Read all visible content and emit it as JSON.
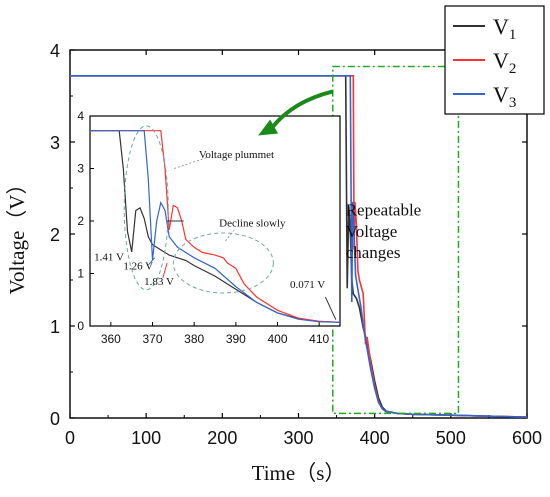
{
  "chart_data": [
    {
      "type": "line",
      "xlabel": "Time（s）",
      "ylabel": "Voltage（V）",
      "xlim": [
        0,
        600
      ],
      "ylim": [
        0,
        4
      ],
      "xticks": [
        "0",
        "100",
        "200",
        "300",
        "400",
        "500",
        "600"
      ],
      "yticks": [
        "0",
        "1",
        "2",
        "3",
        "4"
      ],
      "grid": false,
      "legend_position": "top-right",
      "series": [
        {
          "name": "V",
          "subscript": "1",
          "color": "#333333",
          "x": [
            0,
            355,
            362,
            364,
            366,
            368,
            370,
            372,
            376,
            380,
            385,
            390,
            395,
            400,
            405,
            410,
            415,
            430,
            450,
            500,
            550,
            600
          ],
          "y": [
            3.72,
            3.72,
            3.72,
            1.41,
            2.3,
            2.05,
            1.5,
            1.35,
            1.3,
            1.2,
            0.98,
            0.82,
            0.62,
            0.4,
            0.22,
            0.12,
            0.075,
            0.05,
            0.04,
            0.03,
            0.02,
            0.01
          ]
        },
        {
          "name": "V",
          "subscript": "2",
          "color": "#ff3333",
          "x": [
            0,
            365,
            372,
            373,
            374,
            376,
            378,
            380,
            385,
            388,
            390,
            395,
            400,
            405,
            410,
            415,
            430,
            450,
            500,
            550,
            600
          ],
          "y": [
            3.72,
            3.72,
            3.72,
            1.83,
            2.35,
            2.1,
            1.6,
            1.5,
            1.35,
            0.8,
            0.88,
            0.58,
            0.35,
            0.18,
            0.1,
            0.07,
            0.05,
            0.04,
            0.03,
            0.02,
            0.01
          ]
        },
        {
          "name": "V",
          "subscript": "3",
          "color": "#3366cc",
          "x": [
            0,
            360,
            368,
            370,
            371,
            373,
            375,
            378,
            382,
            386,
            390,
            395,
            400,
            405,
            410,
            415,
            430,
            450,
            500,
            550,
            600
          ],
          "y": [
            3.72,
            3.72,
            3.72,
            1.26,
            2.35,
            2.0,
            1.55,
            1.4,
            1.2,
            0.95,
            0.75,
            0.52,
            0.32,
            0.17,
            0.1,
            0.07,
            0.05,
            0.04,
            0.03,
            0.02,
            0.01
          ]
        }
      ],
      "annotations": [
        {
          "text": "Repeatable",
          "x": 362,
          "y": 2.2
        },
        {
          "text": "Voltage",
          "x": 362,
          "y": 1.97
        },
        {
          "text": "changes",
          "x": 362,
          "y": 1.74
        }
      ],
      "highlight_box": {
        "x": [
          345,
          510
        ],
        "y": [
          0.05,
          3.82
        ],
        "color": "#22aa22",
        "style": "dash-dot"
      },
      "arrow": {
        "from": [
          345,
          3.55
        ],
        "to": [
          247,
          3.07
        ],
        "color": "#1a8a1a"
      }
    },
    {
      "type": "line",
      "role": "inset",
      "xlim": [
        355,
        415
      ],
      "ylim": [
        0,
        4
      ],
      "xticks": [
        "360",
        "370",
        "380",
        "390",
        "400",
        "410"
      ],
      "yticks": [
        "0",
        "1",
        "2",
        "3",
        "4"
      ],
      "series": [
        {
          "color": "#333333",
          "x": [
            355,
            362,
            363,
            364,
            365,
            366,
            367,
            368,
            369,
            370,
            372,
            374,
            376,
            378,
            380,
            385,
            390,
            395,
            400,
            405,
            410,
            415
          ],
          "y": [
            3.72,
            3.72,
            3.0,
            1.8,
            1.41,
            2.2,
            2.25,
            2.05,
            1.7,
            1.55,
            1.45,
            1.35,
            1.3,
            1.25,
            1.15,
            0.95,
            0.7,
            0.45,
            0.25,
            0.14,
            0.09,
            0.071
          ]
        },
        {
          "color": "#ff3333",
          "x": [
            355,
            372,
            373,
            374,
            375,
            376,
            377,
            378,
            380,
            382,
            385,
            387,
            388,
            390,
            392,
            395,
            400,
            405,
            410,
            415
          ],
          "y": [
            3.72,
            3.72,
            3.0,
            1.83,
            2.3,
            2.25,
            2.0,
            1.65,
            1.5,
            1.4,
            1.35,
            1.3,
            1.2,
            1.1,
            0.8,
            0.55,
            0.3,
            0.15,
            0.09,
            0.071
          ]
        },
        {
          "color": "#3366cc",
          "x": [
            355,
            368,
            369,
            370,
            371,
            372,
            373,
            374,
            376,
            378,
            380,
            385,
            390,
            395,
            400,
            405,
            410,
            415
          ],
          "y": [
            3.72,
            3.72,
            2.8,
            1.26,
            2.0,
            2.35,
            2.2,
            1.7,
            1.5,
            1.4,
            1.3,
            1.1,
            0.75,
            0.45,
            0.25,
            0.13,
            0.08,
            0.071
          ]
        }
      ],
      "annotations": [
        {
          "text": "Voltage plummet",
          "x": 378,
          "y": 3.2
        },
        {
          "text": "Decline slowly",
          "x": 386,
          "y": 1.9
        },
        {
          "text": "1.41 V",
          "x": 356,
          "y": 1.25
        },
        {
          "text": "1.26 V",
          "x": 363,
          "y": 1.08
        },
        {
          "text": "1.83 V",
          "x": 368,
          "y": 0.78
        },
        {
          "text": "0.071 V",
          "x": 403,
          "y": 0.72
        }
      ]
    }
  ]
}
